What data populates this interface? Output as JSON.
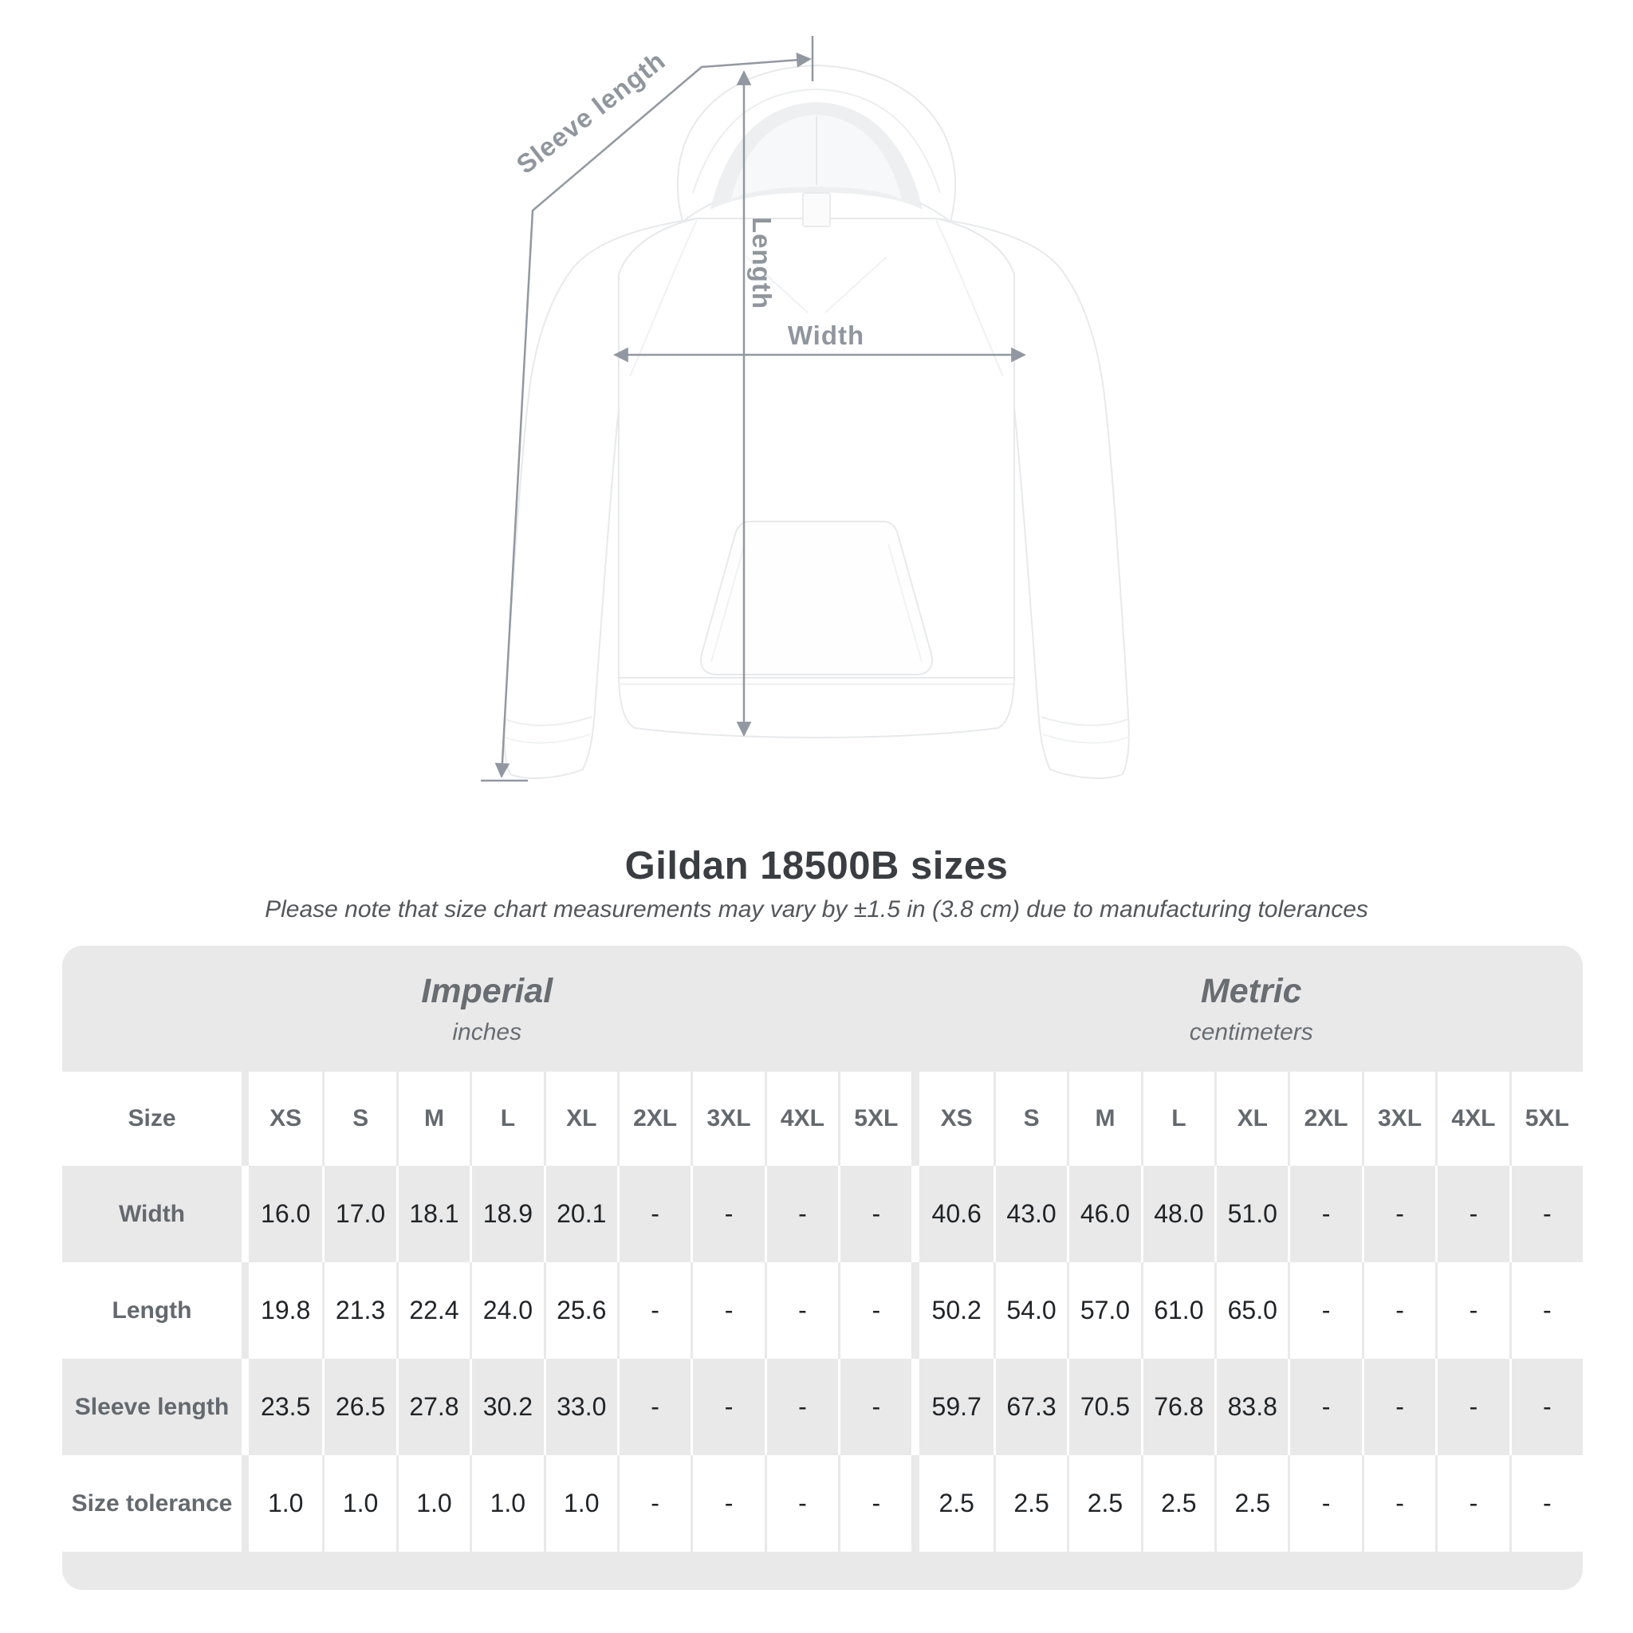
{
  "diagram": {
    "measurements": {
      "sleeve_length": "Sleeve length",
      "length": "Length",
      "width": "Width"
    }
  },
  "chart_data": {
    "type": "table",
    "title": "Gildan 18500B sizes",
    "subtitle": "Please note that size chart measurements may vary by ±1.5 in (3.8 cm) due to manufacturing tolerances",
    "corner_label": "Size",
    "unit_groups": [
      {
        "label": "Imperial",
        "unit": "inches"
      },
      {
        "label": "Metric",
        "unit": "centimeters"
      }
    ],
    "sizes": [
      "XS",
      "S",
      "M",
      "L",
      "XL",
      "2XL",
      "3XL",
      "4XL",
      "5XL"
    ],
    "rows": [
      {
        "label": "Width",
        "imperial": [
          "16.0",
          "17.0",
          "18.1",
          "18.9",
          "20.1",
          "-",
          "-",
          "-",
          "-"
        ],
        "metric": [
          "40.6",
          "43.0",
          "46.0",
          "48.0",
          "51.0",
          "-",
          "-",
          "-",
          "-"
        ]
      },
      {
        "label": "Length",
        "imperial": [
          "19.8",
          "21.3",
          "22.4",
          "24.0",
          "25.6",
          "-",
          "-",
          "-",
          "-"
        ],
        "metric": [
          "50.2",
          "54.0",
          "57.0",
          "61.0",
          "65.0",
          "-",
          "-",
          "-",
          "-"
        ]
      },
      {
        "label": "Sleeve length",
        "imperial": [
          "23.5",
          "26.5",
          "27.8",
          "30.2",
          "33.0",
          "-",
          "-",
          "-",
          "-"
        ],
        "metric": [
          "59.7",
          "67.3",
          "70.5",
          "76.8",
          "83.8",
          "-",
          "-",
          "-",
          "-"
        ]
      },
      {
        "label": "Size tolerance",
        "imperial": [
          "1.0",
          "1.0",
          "1.0",
          "1.0",
          "1.0",
          "-",
          "-",
          "-",
          "-"
        ],
        "metric": [
          "2.5",
          "2.5",
          "2.5",
          "2.5",
          "2.5",
          "-",
          "-",
          "-",
          "-"
        ]
      }
    ]
  },
  "colors": {
    "table_stripe": "#e9e9e9",
    "dimension_line": "#9298a1",
    "dimension_label": "#8f969d",
    "title_text": "#3a3d41",
    "muted_text": "#63696e",
    "value_text": "#212427"
  }
}
